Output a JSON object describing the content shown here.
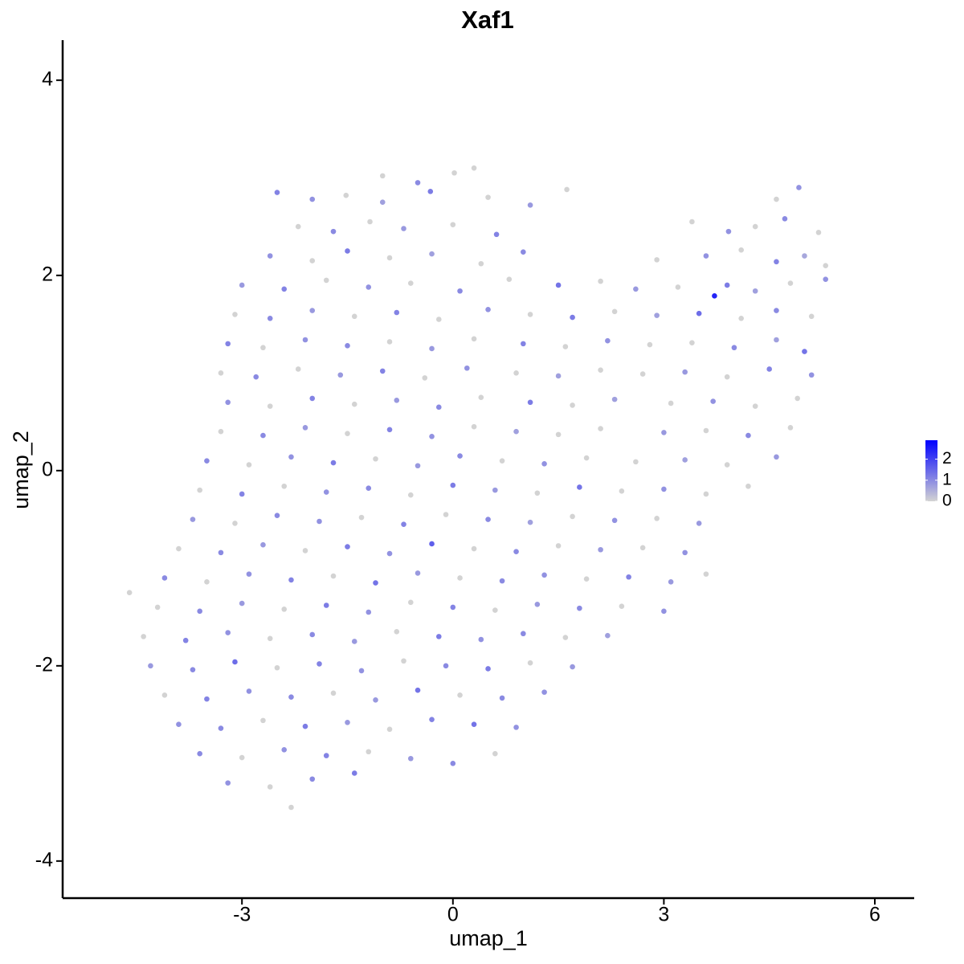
{
  "chart_data": {
    "type": "scatter",
    "title": "Xaf1",
    "x_label": "umap_1",
    "y_label": "umap_2",
    "xlim": [
      -5.55,
      6.56
    ],
    "ylim": [
      -4.38,
      4.41
    ],
    "xticks": [
      -3,
      0,
      3,
      6
    ],
    "yticks": [
      -4,
      -2,
      0,
      2,
      4
    ],
    "color_scale": {
      "low": "#d3d3d3",
      "high": "#0000ff",
      "limits": [
        0,
        2.9
      ],
      "ticks": [
        0,
        1,
        2
      ]
    },
    "x": [
      -1.0,
      -0.5,
      0.02,
      0.3,
      -2.5,
      -2.0,
      -1.52,
      -1.0,
      -0.32,
      0.5,
      1.1,
      1.62,
      4.6,
      4.92,
      -2.2,
      -1.7,
      -1.18,
      -0.7,
      0.0,
      0.62,
      3.4,
      3.92,
      4.3,
      4.72,
      5.2,
      -2.6,
      -2.0,
      -1.5,
      -0.9,
      -0.3,
      0.4,
      1.0,
      2.9,
      3.6,
      4.1,
      4.6,
      5.0,
      5.3,
      -3.0,
      -2.4,
      -1.8,
      -1.2,
      -0.6,
      0.1,
      0.8,
      1.5,
      2.1,
      2.6,
      3.2,
      3.9,
      4.3,
      4.8,
      5.3,
      -3.1,
      -2.6,
      -2.0,
      -1.4,
      -0.8,
      -0.2,
      0.5,
      1.1,
      1.7,
      2.3,
      2.9,
      3.5,
      4.1,
      4.6,
      5.1,
      -3.2,
      -2.7,
      -2.1,
      -1.5,
      -0.9,
      -0.3,
      0.3,
      1.0,
      1.6,
      2.2,
      2.8,
      3.4,
      4.0,
      4.6,
      5.0,
      -3.3,
      -2.8,
      -2.2,
      -1.6,
      -1.0,
      -0.4,
      0.2,
      0.9,
      1.5,
      2.1,
      2.7,
      3.3,
      3.9,
      4.5,
      5.1,
      -3.2,
      -2.6,
      -2.0,
      -1.4,
      -0.8,
      -0.2,
      0.4,
      1.1,
      1.7,
      2.3,
      3.1,
      3.7,
      4.3,
      4.9,
      -3.3,
      -2.7,
      -2.1,
      -1.5,
      -0.9,
      -0.3,
      0.3,
      0.9,
      1.5,
      2.1,
      3.0,
      3.6,
      4.2,
      4.8,
      -3.5,
      -2.9,
      -2.3,
      -1.7,
      -1.1,
      -0.5,
      0.1,
      0.7,
      1.3,
      1.9,
      2.6,
      3.3,
      3.9,
      4.6,
      -3.6,
      -3.0,
      -2.4,
      -1.8,
      -1.2,
      -0.6,
      0.0,
      0.6,
      1.2,
      1.8,
      2.4,
      3.0,
      3.6,
      4.2,
      -3.7,
      -3.1,
      -2.5,
      -1.9,
      -1.3,
      -0.7,
      -0.1,
      0.5,
      1.1,
      1.7,
      2.3,
      2.9,
      3.5,
      -3.9,
      -3.3,
      -2.7,
      -2.1,
      -1.5,
      -0.9,
      -0.3,
      0.3,
      0.9,
      1.5,
      2.1,
      2.7,
      3.3,
      -4.1,
      -3.5,
      -2.9,
      -2.3,
      -1.7,
      -1.1,
      -0.5,
      0.1,
      0.7,
      1.3,
      1.9,
      2.5,
      3.1,
      3.6,
      -4.6,
      -4.2,
      -3.6,
      -3.0,
      -2.4,
      -1.8,
      -1.2,
      -0.6,
      0.0,
      0.6,
      1.2,
      1.8,
      2.4,
      3.0,
      -4.4,
      -3.8,
      -3.2,
      -2.6,
      -2.0,
      -1.4,
      -0.8,
      -0.2,
      0.4,
      1.0,
      1.6,
      2.2,
      -4.3,
      -3.7,
      -3.1,
      -2.5,
      -1.9,
      -1.3,
      -0.7,
      -0.1,
      0.5,
      1.1,
      1.7,
      -4.1,
      -3.5,
      -2.9,
      -2.3,
      -1.7,
      -1.1,
      -0.5,
      0.1,
      0.7,
      1.3,
      -3.9,
      -3.3,
      -2.7,
      -2.1,
      -1.5,
      -0.9,
      -0.3,
      0.3,
      0.9,
      -3.6,
      -3.0,
      -2.4,
      -1.8,
      -1.2,
      -0.6,
      0.0,
      0.6,
      -3.2,
      -2.6,
      -2.0,
      -1.4,
      -2.3,
      3.72
    ],
    "y": [
      3.02,
      2.95,
      3.05,
      3.1,
      2.85,
      2.78,
      2.82,
      2.75,
      2.86,
      2.8,
      2.72,
      2.88,
      2.78,
      2.9,
      2.5,
      2.45,
      2.55,
      2.48,
      2.52,
      2.42,
      2.55,
      2.45,
      2.5,
      2.58,
      2.44,
      2.2,
      2.15,
      2.25,
      2.18,
      2.22,
      2.12,
      2.24,
      2.16,
      2.2,
      2.26,
      2.14,
      2.2,
      2.1,
      1.9,
      1.86,
      1.95,
      1.88,
      1.92,
      1.84,
      1.96,
      1.9,
      1.94,
      1.86,
      1.88,
      1.9,
      1.84,
      1.92,
      1.96,
      1.6,
      1.56,
      1.64,
      1.58,
      1.62,
      1.55,
      1.65,
      1.6,
      1.57,
      1.63,
      1.59,
      1.61,
      1.56,
      1.64,
      1.58,
      1.3,
      1.26,
      1.34,
      1.28,
      1.32,
      1.25,
      1.35,
      1.3,
      1.27,
      1.33,
      1.29,
      1.31,
      1.26,
      1.34,
      1.22,
      1.0,
      0.96,
      1.04,
      0.98,
      1.02,
      0.95,
      1.05,
      1.0,
      0.97,
      1.03,
      0.99,
      1.01,
      0.96,
      1.04,
      0.98,
      0.7,
      0.66,
      0.74,
      0.68,
      0.72,
      0.65,
      0.75,
      0.7,
      0.67,
      0.73,
      0.69,
      0.71,
      0.66,
      0.74,
      0.4,
      0.36,
      0.44,
      0.38,
      0.42,
      0.35,
      0.45,
      0.4,
      0.37,
      0.43,
      0.39,
      0.41,
      0.36,
      0.44,
      0.1,
      0.06,
      0.14,
      0.08,
      0.12,
      0.05,
      0.15,
      0.1,
      0.07,
      0.13,
      0.09,
      0.11,
      0.06,
      0.14,
      -0.2,
      -0.24,
      -0.16,
      -0.22,
      -0.18,
      -0.25,
      -0.15,
      -0.2,
      -0.23,
      -0.17,
      -0.21,
      -0.19,
      -0.24,
      -0.16,
      -0.5,
      -0.54,
      -0.46,
      -0.52,
      -0.48,
      -0.55,
      -0.45,
      -0.5,
      -0.53,
      -0.47,
      -0.51,
      -0.49,
      -0.54,
      -0.8,
      -0.84,
      -0.76,
      -0.82,
      -0.78,
      -0.85,
      -0.75,
      -0.8,
      -0.83,
      -0.77,
      -0.81,
      -0.79,
      -0.84,
      -1.1,
      -1.14,
      -1.06,
      -1.12,
      -1.08,
      -1.15,
      -1.05,
      -1.1,
      -1.13,
      -1.07,
      -1.11,
      -1.09,
      -1.14,
      -1.06,
      -1.25,
      -1.4,
      -1.44,
      -1.36,
      -1.42,
      -1.38,
      -1.45,
      -1.35,
      -1.4,
      -1.43,
      -1.37,
      -1.41,
      -1.39,
      -1.44,
      -1.7,
      -1.74,
      -1.66,
      -1.72,
      -1.68,
      -1.75,
      -1.65,
      -1.7,
      -1.73,
      -1.67,
      -1.71,
      -1.69,
      -2.0,
      -2.04,
      -1.96,
      -2.02,
      -1.98,
      -2.05,
      -1.95,
      -2.0,
      -2.03,
      -1.97,
      -2.01,
      -2.3,
      -2.34,
      -2.26,
      -2.32,
      -2.28,
      -2.35,
      -2.25,
      -2.3,
      -2.33,
      -2.27,
      -2.6,
      -2.64,
      -2.56,
      -2.62,
      -2.58,
      -2.65,
      -2.55,
      -2.6,
      -2.63,
      -2.9,
      -2.94,
      -2.86,
      -2.92,
      -2.88,
      -2.95,
      -3.0,
      -2.9,
      -3.2,
      -3.24,
      -3.16,
      -3.1,
      -3.45,
      1.79
    ],
    "values": [
      0,
      1.0,
      0,
      0,
      1.1,
      0.9,
      0,
      0.7,
      1.2,
      0,
      0.8,
      0,
      0,
      0.9,
      0,
      1.0,
      0,
      0.8,
      0,
      1.1,
      0,
      0.9,
      0,
      1.0,
      0,
      0.9,
      0,
      1.2,
      0,
      0.7,
      0,
      1.0,
      0,
      0.9,
      0,
      1.1,
      0.6,
      0,
      0.8,
      1.1,
      0,
      0.9,
      0,
      1.0,
      0,
      1.3,
      0,
      0.8,
      0,
      1.2,
      0.7,
      0,
      0.9,
      0,
      1.0,
      0.8,
      0,
      1.1,
      0,
      0.9,
      0,
      1.2,
      0,
      0.7,
      1.4,
      0,
      1.0,
      0,
      1.1,
      0,
      0.9,
      1.0,
      0,
      0.8,
      0,
      1.1,
      0,
      0.9,
      0,
      0,
      1.0,
      0.7,
      1.3,
      0,
      1.0,
      0,
      0.8,
      1.1,
      0,
      0.9,
      0,
      0.7,
      0,
      0,
      0.8,
      0,
      1.1,
      0.9,
      0.9,
      0,
      1.1,
      0,
      0.8,
      1.0,
      0,
      1.2,
      0,
      0.7,
      0,
      0.9,
      0,
      0,
      0,
      1.0,
      0.8,
      0,
      1.1,
      0.9,
      0,
      0.7,
      0,
      0,
      0.8,
      0,
      1.0,
      0,
      1.0,
      0,
      0.9,
      1.2,
      0,
      0.8,
      1.0,
      0,
      0.9,
      0,
      0,
      0.7,
      0,
      0.8,
      0,
      1.1,
      0,
      0.9,
      1.0,
      0,
      1.2,
      0.8,
      0,
      1.3,
      0,
      0.9,
      0,
      0,
      0.8,
      0,
      1.0,
      0.9,
      0,
      1.1,
      0,
      1.0,
      0.7,
      0,
      0.9,
      0,
      0.8,
      0,
      1.0,
      0.8,
      0,
      1.2,
      0.9,
      1.6,
      0,
      1.0,
      0,
      0.8,
      0,
      0.9,
      1.0,
      0,
      0.9,
      1.1,
      0,
      1.3,
      0.8,
      0,
      1.0,
      0.9,
      0,
      1.1,
      0.8,
      0,
      0,
      0,
      1.0,
      0.8,
      0,
      1.2,
      0.9,
      0,
      1.1,
      0,
      0.8,
      1.0,
      0,
      0.9,
      0,
      1.1,
      0.9,
      0,
      1.0,
      0.8,
      0,
      1.2,
      0.9,
      1.0,
      0,
      0.7,
      0.8,
      1.0,
      1.4,
      0,
      1.1,
      0.9,
      0,
      1.0,
      1.2,
      0,
      0.8,
      0,
      1.1,
      0.9,
      1.0,
      0,
      0.8,
      1.3,
      0,
      1.0,
      0.9,
      0.9,
      1.0,
      0,
      1.2,
      0.8,
      0,
      1.1,
      1.3,
      0.9,
      1.0,
      0,
      0.9,
      1.1,
      0,
      0.8,
      1.0,
      0,
      0.9,
      0,
      1.0,
      1.2,
      0,
      2.4
    ]
  }
}
